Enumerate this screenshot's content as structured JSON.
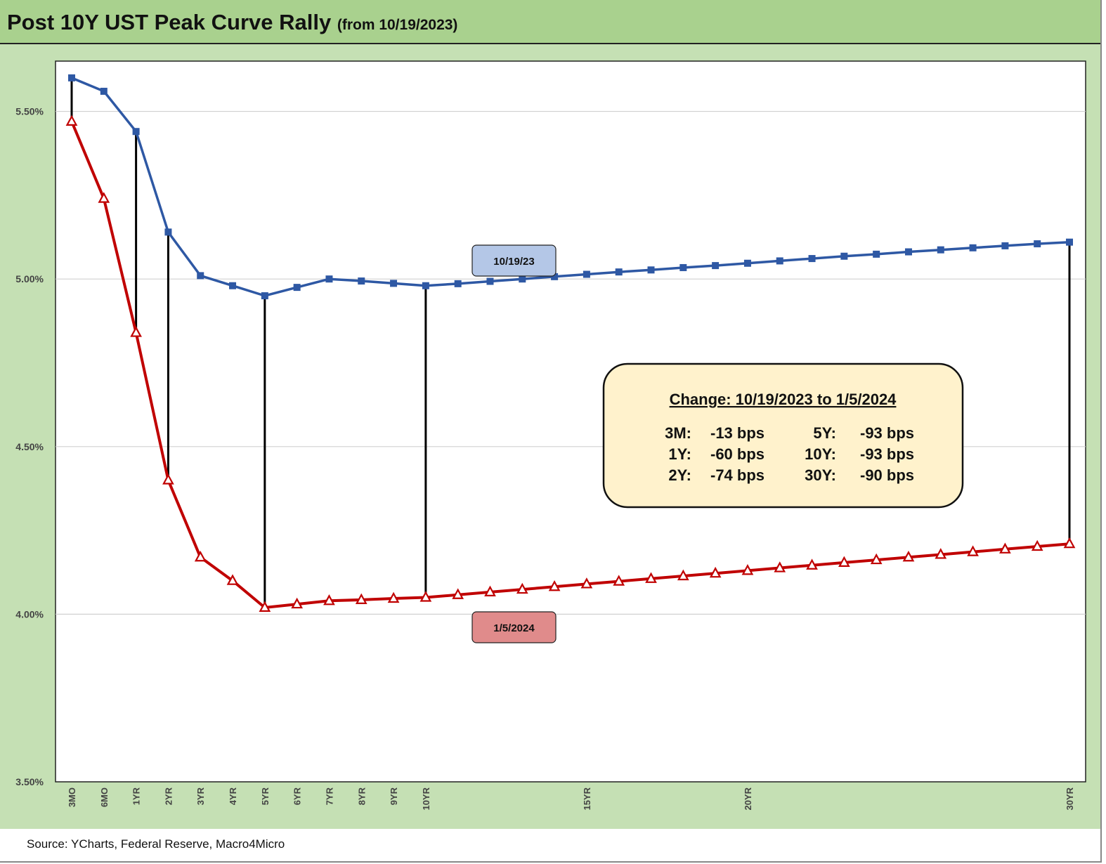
{
  "title": "Post 10Y UST Peak Curve Rally",
  "subtitle": "(from 10/19/2023)",
  "source": "Source: YCharts, Federal Reserve, Macro4Micro",
  "colors": {
    "series_1019": "#2e58a4",
    "series_0105": "#c00000",
    "panel_bg": "#c5e0b4",
    "title_bg": "#a9d18e",
    "box_bg": "#fff2cc",
    "label_blue_bg": "#b4c7e7",
    "label_red_bg": "#e08b8b"
  },
  "chart_data": {
    "type": "line",
    "ylim": [
      3.5,
      5.65
    ],
    "y_ticks": [
      {
        "value": 3.5,
        "label": "3.50%"
      },
      {
        "value": 4.0,
        "label": "4.00%"
      },
      {
        "value": 4.5,
        "label": "4.50%"
      },
      {
        "value": 5.0,
        "label": "5.00%"
      },
      {
        "value": 5.5,
        "label": "5.50%"
      }
    ],
    "grid": true,
    "x_tick_labels": [
      {
        "index": 0,
        "label": "3MO"
      },
      {
        "index": 1,
        "label": "6MO"
      },
      {
        "index": 2,
        "label": "1YR"
      },
      {
        "index": 3,
        "label": "2YR"
      },
      {
        "index": 4,
        "label": "3YR"
      },
      {
        "index": 5,
        "label": "4YR"
      },
      {
        "index": 6,
        "label": "5YR"
      },
      {
        "index": 7,
        "label": "6YR"
      },
      {
        "index": 8,
        "label": "7YR"
      },
      {
        "index": 9,
        "label": "8YR"
      },
      {
        "index": 10,
        "label": "9YR"
      },
      {
        "index": 11,
        "label": "10YR"
      },
      {
        "index": 16,
        "label": "15YR"
      },
      {
        "index": 21,
        "label": "20YR"
      },
      {
        "index": 31,
        "label": "30YR"
      }
    ],
    "series": [
      {
        "name": "10/19/23",
        "color": "#2e58a4",
        "marker": "square",
        "values": [
          5.6,
          5.56,
          5.44,
          5.14,
          5.01,
          4.98,
          4.95,
          4.975,
          5.0,
          4.994,
          4.987,
          4.98,
          4.986,
          4.993,
          5.0,
          5.007,
          5.014,
          5.021,
          5.027,
          5.034,
          5.04,
          5.047,
          5.054,
          5.061,
          5.068,
          5.074,
          5.081,
          5.087,
          5.093,
          5.099,
          5.105,
          5.11
        ]
      },
      {
        "name": "1/5/2024",
        "color": "#c00000",
        "marker": "triangle",
        "values": [
          5.47,
          5.24,
          4.84,
          4.4,
          4.17,
          4.1,
          4.02,
          4.03,
          4.04,
          4.043,
          4.047,
          4.05,
          4.058,
          4.066,
          4.074,
          4.082,
          4.09,
          4.098,
          4.106,
          4.114,
          4.122,
          4.13,
          4.138,
          4.146,
          4.154,
          4.162,
          4.17,
          4.178,
          4.186,
          4.194,
          4.202,
          4.21
        ]
      }
    ],
    "connectors": [
      0,
      2,
      3,
      6,
      11,
      31
    ],
    "series_labels": [
      {
        "series": 0,
        "text": "10/19/23"
      },
      {
        "series": 1,
        "text": "1/5/2024"
      }
    ],
    "annotation": {
      "title": "Change: 10/19/2023 to 1/5/2024",
      "rows": [
        {
          "label1": "3M:",
          "value1": "-13 bps",
          "label2": "5Y:",
          "value2": "-93 bps"
        },
        {
          "label1": "1Y:",
          "value1": "-60 bps",
          "label2": "10Y:",
          "value2": "-93 bps"
        },
        {
          "label1": "2Y:",
          "value1": "-74 bps",
          "label2": "30Y:",
          "value2": "-90 bps"
        }
      ]
    }
  }
}
